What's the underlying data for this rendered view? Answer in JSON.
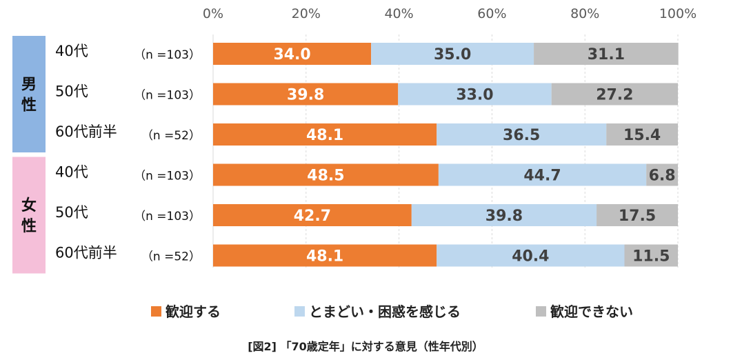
{
  "chart_data": {
    "type": "bar",
    "stacked": true,
    "orientation": "horizontal",
    "title": "[図2] 「70歳定年」に対する意見（性年代別）",
    "xlim": [
      0,
      100
    ],
    "x_ticks": [
      "0%",
      "20%",
      "40%",
      "60%",
      "80%",
      "100%"
    ],
    "grid": true,
    "legend_position": "bottom",
    "groups": [
      {
        "label": "男性",
        "color": "#8DB4E2"
      },
      {
        "label": "女性",
        "color": "#F5BFD9"
      }
    ],
    "categories": [
      {
        "group": "男性",
        "age": "40代",
        "n": "（n =103）"
      },
      {
        "group": "男性",
        "age": "50代",
        "n": "（n =103）"
      },
      {
        "group": "男性",
        "age": "60代前半",
        "n": "（n =52）"
      },
      {
        "group": "女性",
        "age": "40代",
        "n": "（n =103）"
      },
      {
        "group": "女性",
        "age": "50代",
        "n": "（n =103）"
      },
      {
        "group": "女性",
        "age": "60代前半",
        "n": "（n =52）"
      }
    ],
    "series": [
      {
        "name": "歓迎する",
        "color": "#ED7D31",
        "label_color": "#FFFFFF",
        "values": [
          34.0,
          39.8,
          48.1,
          48.5,
          42.7,
          48.1
        ],
        "labels": [
          "34.0",
          "39.8",
          "48.1",
          "48.5",
          "42.7",
          "48.1"
        ]
      },
      {
        "name": "とまどい・困惑を感じる",
        "color": "#BDD7EE",
        "label_color": "#404040",
        "values": [
          35.0,
          33.0,
          36.5,
          44.7,
          39.8,
          40.4
        ],
        "labels": [
          "35.0",
          "33.0",
          "36.5",
          "44.7",
          "39.8",
          "40.4"
        ]
      },
      {
        "name": "歓迎できない",
        "color": "#BFBFBF",
        "label_color": "#404040",
        "values": [
          31.1,
          27.2,
          15.4,
          6.8,
          17.5,
          11.5
        ],
        "labels": [
          "31.1",
          "27.2",
          "15.4",
          "6.8",
          "17.5",
          "11.5"
        ]
      }
    ]
  }
}
